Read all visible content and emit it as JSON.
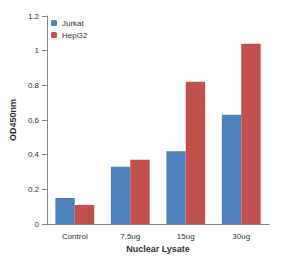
{
  "chart_data": {
    "type": "bar",
    "x_label": "Nuclear Lysate",
    "y_label": "OD450nm",
    "categories": [
      "Control",
      "7.5ug",
      "15ug",
      "30ug"
    ],
    "series": [
      {
        "name": "Jurkat",
        "color": "#4f81bd",
        "values": [
          0.15,
          0.33,
          0.42,
          0.63
        ]
      },
      {
        "name": "HepG2",
        "color": "#c0504d",
        "values": [
          0.11,
          0.37,
          0.82,
          1.04
        ]
      }
    ],
    "ylim": [
      0,
      1.2
    ],
    "yticks": [
      0,
      0.2,
      0.4,
      0.6,
      0.8,
      1,
      1.2
    ],
    "grid": false,
    "legend": "top-left"
  }
}
